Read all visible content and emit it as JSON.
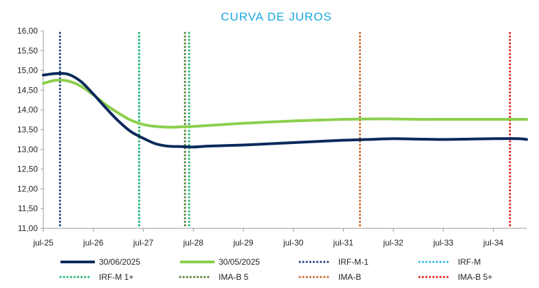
{
  "chart_data": {
    "type": "line",
    "title": "CURVA DE JUROS",
    "title_color": "#1aa7e0",
    "xlabel": "",
    "ylabel": "",
    "x_start": "2025-07",
    "x_end": "2035-03",
    "x_ticks": [
      "jul-25",
      "jul-26",
      "jul-27",
      "jul-28",
      "jul-29",
      "jul-30",
      "jul-31",
      "jul-32",
      "jul-33",
      "jul-34"
    ],
    "ylim": [
      11.0,
      16.0
    ],
    "y_ticks": [
      "11,00",
      "11,50",
      "12,00",
      "12,50",
      "13,00",
      "13,50",
      "14,00",
      "14,50",
      "15,00",
      "15,50",
      "16,00"
    ],
    "grid": false,
    "legend_position": "bottom",
    "series": [
      {
        "name": "30/06/2025",
        "color": "#0b2a5b",
        "x": [
          "2025-07",
          "2025-10",
          "2026-01",
          "2026-04",
          "2026-07",
          "2026-10",
          "2027-01",
          "2027-04",
          "2027-07",
          "2027-10",
          "2028-01",
          "2028-04",
          "2028-07",
          "2028-10",
          "2029-01",
          "2029-07",
          "2030-01",
          "2030-07",
          "2031-01",
          "2031-07",
          "2032-01",
          "2032-07",
          "2033-01",
          "2033-07",
          "2034-01",
          "2034-07",
          "2035-01",
          "2035-03"
        ],
        "values": [
          14.88,
          14.92,
          14.9,
          14.72,
          14.4,
          14.05,
          13.72,
          13.45,
          13.28,
          13.14,
          13.08,
          13.07,
          13.06,
          13.08,
          13.09,
          13.11,
          13.14,
          13.17,
          13.2,
          13.23,
          13.25,
          13.27,
          13.26,
          13.25,
          13.26,
          13.27,
          13.27,
          13.25
        ]
      },
      {
        "name": "30/05/2025",
        "color": "#8ccf4d",
        "x": [
          "2025-07",
          "2025-10",
          "2026-01",
          "2026-04",
          "2026-07",
          "2026-10",
          "2027-01",
          "2027-04",
          "2027-07",
          "2027-10",
          "2028-01",
          "2028-04",
          "2028-07",
          "2028-10",
          "2029-01",
          "2029-07",
          "2030-01",
          "2030-07",
          "2031-01",
          "2031-07",
          "2032-01",
          "2032-07",
          "2033-01",
          "2033-07",
          "2034-01",
          "2034-07",
          "2035-01",
          "2035-03"
        ],
        "values": [
          14.67,
          14.75,
          14.73,
          14.6,
          14.38,
          14.13,
          13.92,
          13.74,
          13.63,
          13.58,
          13.56,
          13.57,
          13.58,
          13.6,
          13.62,
          13.66,
          13.69,
          13.72,
          13.74,
          13.76,
          13.77,
          13.77,
          13.76,
          13.76,
          13.76,
          13.76,
          13.76,
          13.76
        ]
      }
    ],
    "vertical_markers": [
      {
        "name": "IRF-M-1",
        "color": "#1a3e78",
        "x": "2025-11"
      },
      {
        "name": "IRF-M",
        "color": "#29b6e6",
        "x": "2027-06"
      },
      {
        "name": "IRF-M 1+",
        "color": "#1cb86a",
        "x": "2027-06"
      },
      {
        "name": "IMA-B 5",
        "color": "#4f7a2e",
        "x": "2028-05"
      },
      {
        "name": "IMA-B",
        "color": "#c8662a",
        "x": "2031-11"
      },
      {
        "name": "IMA-B 5+",
        "color": "#e21b1b",
        "x": "2034-11"
      }
    ],
    "extra_markers": [
      {
        "color": "#1cb86a",
        "x": "2028-06"
      }
    ]
  }
}
